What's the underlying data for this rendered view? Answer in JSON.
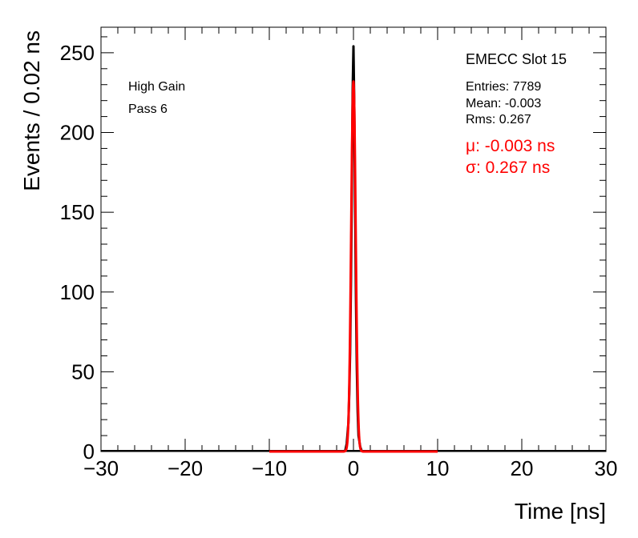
{
  "chart_data": {
    "type": "histogram",
    "xlabel": "Time [ns]",
    "ylabel": "Events / 0.02 ns",
    "xlim": [
      -30,
      30
    ],
    "ylim": [
      0,
      266
    ],
    "x_ticks": [
      -30,
      -20,
      -10,
      0,
      10,
      20,
      30
    ],
    "x_tick_labels": [
      "−30",
      "−20",
      "−10",
      "0",
      "10",
      "20",
      "30"
    ],
    "y_ticks": [
      0,
      50,
      100,
      150,
      200,
      250
    ],
    "y_tick_labels": [
      "0",
      "50",
      "100",
      "150",
      "200",
      "250"
    ],
    "series": [
      {
        "kind": "histogram",
        "color": "#000000",
        "x": [
          -1.0,
          -0.8,
          -0.6,
          -0.5,
          -0.4,
          -0.3,
          -0.2,
          -0.1,
          0.0,
          0.1,
          0.2,
          0.3,
          0.4,
          0.5,
          0.6,
          0.8,
          1.0
        ],
        "y": [
          0,
          5,
          18,
          36,
          62,
          105,
          160,
          225,
          254,
          215,
          150,
          95,
          52,
          25,
          10,
          3,
          0
        ]
      },
      {
        "kind": "gaussian-fit",
        "color": "#ff0000",
        "amplitude": 232,
        "mean": -0.003,
        "sigma": 0.267,
        "range": [
          -10,
          10
        ]
      }
    ],
    "annotations": {
      "left": [
        "High Gain",
        "Pass 6"
      ],
      "title": "EMECC Slot 15",
      "stats": [
        "Entries: 7789",
        "Mean: -0.003",
        "Rms: 0.267"
      ],
      "fit": [
        "μ: -0.003 ns",
        "σ: 0.267 ns"
      ]
    },
    "grid": false,
    "legend": "none"
  }
}
